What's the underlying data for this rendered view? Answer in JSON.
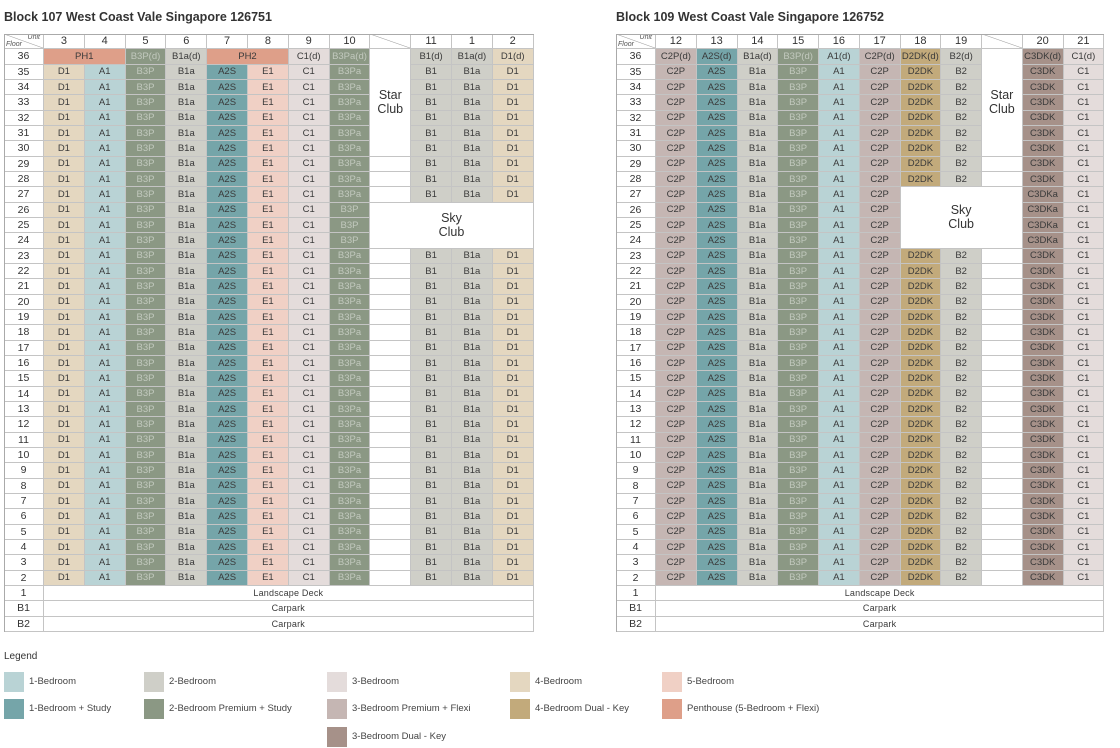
{
  "colors": {
    "1BR": "#b9d3d5",
    "1BR_S": "#75a5a9",
    "2BR": "#cfcfc8",
    "2BRP_S": "#8b9884",
    "3BR": "#e4dcdb",
    "3BRP_F": "#c5b6b3",
    "3BR_DK": "#a69189",
    "4BR": "#e4d7c0",
    "4BR_DK": "#c2aa7b",
    "5BR": "#f0d0c5",
    "PH": "#de9f89"
  },
  "header": {
    "unit_label": "Unit",
    "floor_label": "Floor"
  },
  "floors": [
    "36",
    "35",
    "34",
    "33",
    "32",
    "31",
    "30",
    "29",
    "28",
    "27",
    "26",
    "25",
    "24",
    "23",
    "22",
    "21",
    "20",
    "19",
    "18",
    "17",
    "16",
    "15",
    "14",
    "13",
    "12",
    "11",
    "10",
    "9",
    "8",
    "7",
    "6",
    "5",
    "4",
    "3",
    "2"
  ],
  "lower_floors": [
    {
      "floor": "1",
      "label": "Landscape Deck"
    },
    {
      "floor": "B1",
      "label": "Carpark"
    },
    {
      "floor": "B2",
      "label": "Carpark"
    }
  ],
  "blocks": [
    {
      "title": "Block 107 West Coast Vale Singapore 126751",
      "star_club": "Star Club",
      "sky_club": "Sky Club",
      "penthouses": [
        {
          "label": "PH1",
          "units": [
            "3",
            "4"
          ]
        },
        {
          "label": "PH2",
          "units": [
            "7",
            "8"
          ]
        }
      ],
      "columns": [
        {
          "unit": "3",
          "type": "4BR",
          "top": "PH1",
          "typical": "D1"
        },
        {
          "unit": "4",
          "type": "1BR",
          "top": "PH1",
          "typical": "A1"
        },
        {
          "unit": "5",
          "type": "2BRP_S",
          "top": "B3P(d)",
          "typical": "B3P"
        },
        {
          "unit": "6",
          "type": "2BR",
          "top": "B1a(d)",
          "typical": "B1a"
        },
        {
          "unit": "7",
          "type": "1BR_S",
          "top": "PH2",
          "typical": "A2S"
        },
        {
          "unit": "8",
          "type": "5BR",
          "top": "PH2",
          "typical": "E1"
        },
        {
          "unit": "9",
          "type": "3BR",
          "top": "C1(d)",
          "typical": "C1"
        },
        {
          "unit": "10",
          "type": "2BRP_S",
          "top": "B3Pa(d)",
          "typical": "B3Pa",
          "exceptions": {
            "26": "B3P",
            "25": "B3P",
            "24": "B3P"
          }
        },
        {
          "unit": "",
          "gap": true
        },
        {
          "unit": "11",
          "type": "2BR",
          "top": "B1(d)",
          "typical": "B1"
        },
        {
          "unit": "1",
          "type": "2BR",
          "top": "B1a(d)",
          "typical": "B1a"
        },
        {
          "unit": "2",
          "type": "4BR",
          "top": "D1(d)",
          "typical": "D1"
        }
      ]
    },
    {
      "title": "Block 109 West Coast Vale Singapore 126752",
      "star_club": "Star Club",
      "sky_club": "Sky Club",
      "penthouses": [],
      "columns": [
        {
          "unit": "12",
          "type": "3BRP_F",
          "top": "C2P(d)",
          "typical": "C2P"
        },
        {
          "unit": "13",
          "type": "1BR_S",
          "top": "A2S(d)",
          "typical": "A2S"
        },
        {
          "unit": "14",
          "type": "2BR",
          "top": "B1a(d)",
          "typical": "B1a"
        },
        {
          "unit": "15",
          "type": "2BRP_S",
          "top": "B3P(d)",
          "typical": "B3P"
        },
        {
          "unit": "16",
          "type": "1BR",
          "top": "A1(d)",
          "typical": "A1"
        },
        {
          "unit": "17",
          "type": "3BRP_F",
          "top": "C2P(d)",
          "typical": "C2P"
        },
        {
          "unit": "18",
          "type": "4BR_DK",
          "top": "D2DK(d)",
          "typical": "D2DK"
        },
        {
          "unit": "19",
          "type": "2BR",
          "top": "B2(d)",
          "typical": "B2"
        },
        {
          "unit": "",
          "gap": true
        },
        {
          "unit": "20",
          "type": "3BR_DK",
          "top": "C3DK(d)",
          "typical": "C3DK",
          "exceptions": {
            "27": "C3DKa",
            "26": "C3DKa",
            "25": "C3DKa",
            "24": "C3DKa"
          }
        },
        {
          "unit": "21",
          "type": "3BR",
          "top": "C1(d)",
          "typical": "C1"
        }
      ]
    }
  ],
  "legend": {
    "title": "Legend",
    "items": [
      {
        "key": "1BR",
        "label": "1-Bedroom"
      },
      {
        "key": "1BR_S",
        "label": "1-Bedroom + Study"
      },
      {
        "key": "2BR",
        "label": "2-Bedroom"
      },
      {
        "key": "2BRP_S",
        "label": "2-Bedroom Premium + Study"
      },
      {
        "key": "3BR",
        "label": "3-Bedroom"
      },
      {
        "key": "3BRP_F",
        "label": "3-Bedroom Premium + Flexi"
      },
      {
        "key": "3BR_DK",
        "label": "3-Bedroom Dual - Key"
      },
      {
        "key": "4BR",
        "label": "4-Bedroom"
      },
      {
        "key": "4BR_DK",
        "label": "4-Bedroom Dual - Key"
      },
      {
        "key": "5BR",
        "label": "5-Bedroom"
      },
      {
        "key": "PH",
        "label": "Penthouse (5-Bedroom + Flexi)"
      }
    ]
  }
}
